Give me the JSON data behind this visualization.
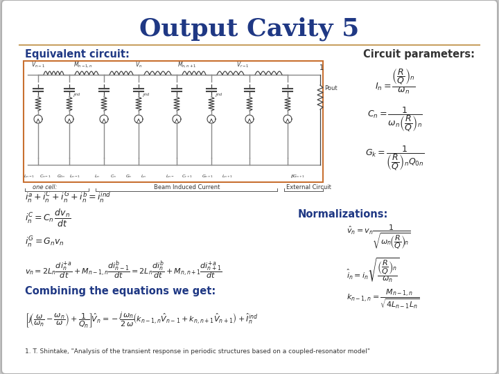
{
  "title": "Output Cavity 5",
  "title_color": "#1F3884",
  "title_fontsize": 26,
  "bg_color": "#FFFFFF",
  "slide_bg": "#C8C8C8",
  "border_color": "#C8A060",
  "section_left_title": "Equivalent circuit:",
  "section_right_title": "Circuit parameters:",
  "section_left_color": "#1F3884",
  "section_right_color": "#333333",
  "normalizations_title": "Normalizations:",
  "combining_title": "Combining the equations we get:",
  "footnote": "1. T. Shintake, \"Analysis of the transient response in periodic structures based on a coupled-resonator model\"",
  "formula_color": "#222222",
  "blue_formula_color": "#1F3884",
  "circuit_border": "#C87030",
  "line_color": "#888888"
}
